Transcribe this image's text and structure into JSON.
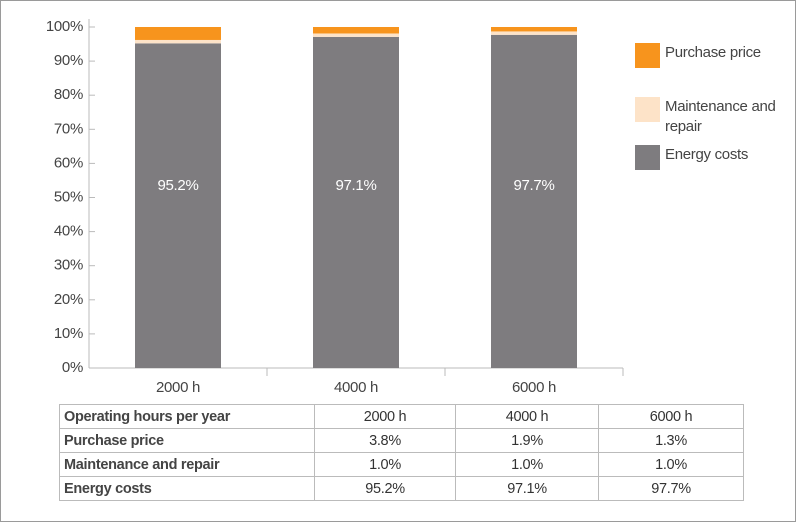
{
  "chart_data": {
    "type": "stacked_bar",
    "categories": [
      "2000 h",
      "4000 h",
      "6000 h"
    ],
    "series": [
      {
        "name": "Purchase price",
        "color": "#f7941d",
        "values": [
          3.8,
          1.9,
          1.3
        ]
      },
      {
        "name": "Maintenance and repair",
        "color": "#fde3c8",
        "values": [
          1.0,
          1.0,
          1.0
        ]
      },
      {
        "name": "Energy costs",
        "color": "#7e7c7f",
        "values": [
          95.2,
          97.1,
          97.7
        ],
        "value_labels": [
          "95.2%",
          "97.1%",
          "97.7%"
        ]
      }
    ],
    "ylim": [
      0,
      100
    ],
    "yticks": [
      {
        "value": 0,
        "label": "0%"
      },
      {
        "value": 10,
        "label": "10%"
      },
      {
        "value": 20,
        "label": "20%"
      },
      {
        "value": 30,
        "label": "30%"
      },
      {
        "value": 40,
        "label": "40%"
      },
      {
        "value": 50,
        "label": "50%"
      },
      {
        "value": 60,
        "label": "60%"
      },
      {
        "value": 70,
        "label": "70%"
      },
      {
        "value": 80,
        "label": "80%"
      },
      {
        "value": 90,
        "label": "90%"
      },
      {
        "value": 100,
        "label": "100%"
      }
    ],
    "legend": "right"
  },
  "table": {
    "header": [
      "Operating hours per year",
      "2000 h",
      "4000 h",
      "6000 h"
    ],
    "rows": [
      [
        "Purchase price",
        "3.8%",
        "1.9%",
        "1.3%"
      ],
      [
        "Maintenance and repair",
        "1.0%",
        "1.0%",
        "1.0%"
      ],
      [
        "Energy costs",
        "95.2%",
        "97.1%",
        "97.7%"
      ]
    ]
  }
}
